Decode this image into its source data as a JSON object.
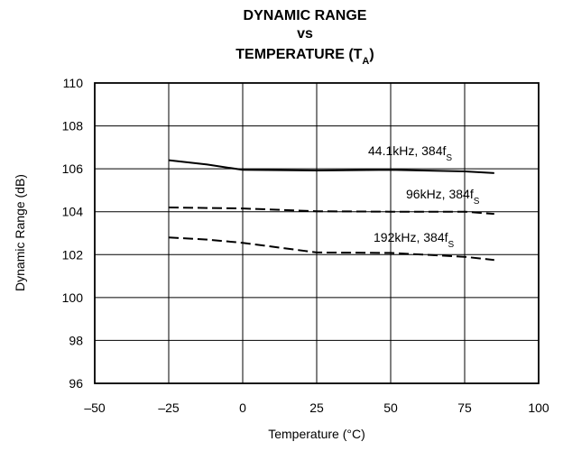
{
  "chart_data": {
    "type": "line",
    "title_lines": [
      "DYNAMIC RANGE",
      "vs",
      "TEMPERATURE (T",
      "A",
      ")"
    ],
    "xlabel": "Temperature (°C)",
    "ylabel": "Dynamic Range (dB)",
    "xlim": [
      -50,
      100
    ],
    "ylim": [
      96,
      110
    ],
    "xticks": [
      -50,
      -25,
      0,
      25,
      50,
      75,
      100
    ],
    "xtick_labels": [
      "–50",
      "–25",
      "0",
      "25",
      "50",
      "75",
      "100"
    ],
    "yticks": [
      96,
      98,
      100,
      102,
      104,
      106,
      108,
      110
    ],
    "ytick_labels": [
      "96",
      "98",
      "100",
      "102",
      "104",
      "106",
      "108",
      "110"
    ],
    "grid": true,
    "series": [
      {
        "style": "solid",
        "x": [
          -25,
          -12,
          0,
          25,
          50,
          75,
          85
        ],
        "y": [
          106.4,
          106.2,
          105.95,
          105.92,
          105.95,
          105.88,
          105.8
        ],
        "label_main": "44.1kHz, 384f",
        "label_sub": "S"
      },
      {
        "style": "dashed",
        "x": [
          -25,
          0,
          25,
          50,
          75,
          85
        ],
        "y": [
          104.2,
          104.15,
          104.02,
          104.0,
          104.0,
          103.9
        ],
        "label_main": "96kHz, 384f",
        "label_sub": "S"
      },
      {
        "style": "dashed",
        "x": [
          -25,
          -12,
          0,
          25,
          50,
          75,
          85
        ],
        "y": [
          102.8,
          102.7,
          102.55,
          102.1,
          102.08,
          101.9,
          101.75
        ],
        "label_main": "192kHz, 384f",
        "label_sub": "S"
      }
    ]
  }
}
